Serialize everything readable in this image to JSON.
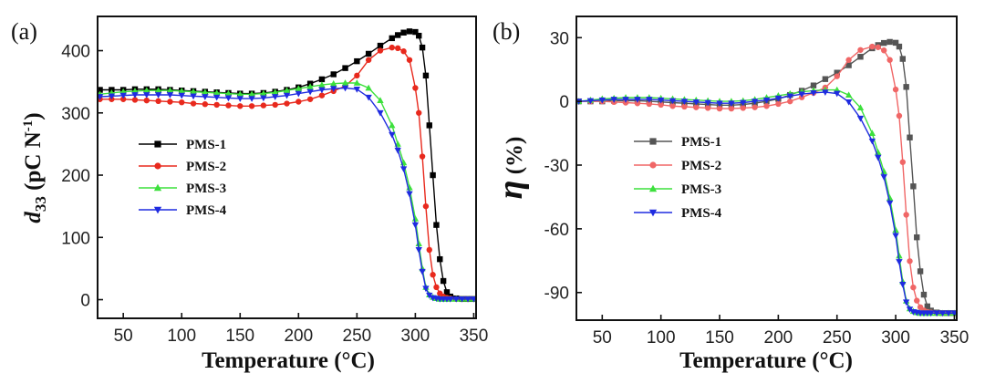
{
  "chart_data": [
    {
      "type": "line",
      "panel_label": "(a)",
      "xlabel": "Temperature (°C)",
      "ylabel": "d33 (pC N⁻¹)",
      "ylabel_symbol": "d",
      "ylabel_subscript": "33",
      "ylabel_unit": " (pC N",
      "ylabel_sup": "-1",
      "ylabel_close": ")",
      "xlim": [
        28,
        352
      ],
      "ylim": [
        -30,
        455
      ],
      "xticks": [
        "50",
        "100",
        "150",
        "200",
        "250",
        "300",
        "350"
      ],
      "yticks": [
        "0",
        "100",
        "200",
        "300",
        "400"
      ],
      "legend_position": "middle-left",
      "x": [
        30,
        40,
        50,
        60,
        70,
        80,
        90,
        100,
        110,
        120,
        130,
        140,
        150,
        160,
        170,
        180,
        190,
        200,
        210,
        220,
        230,
        240,
        250,
        260,
        270,
        280,
        285,
        290,
        295,
        300,
        303,
        306,
        309,
        312,
        315,
        318,
        321,
        324,
        327,
        330,
        335,
        340,
        345,
        350
      ],
      "series": [
        {
          "name": "PMS-1",
          "color": "#000000",
          "marker": "square",
          "values": [
            337,
            337,
            337,
            338,
            338,
            338,
            337,
            336,
            335,
            334,
            333,
            332,
            331,
            331,
            332,
            334,
            337,
            341,
            347,
            354,
            362,
            372,
            383,
            395,
            408,
            420,
            425,
            429,
            431,
            430,
            424,
            405,
            360,
            280,
            200,
            120,
            65,
            30,
            12,
            5,
            2,
            1,
            1,
            1
          ]
        },
        {
          "name": "PMS-2",
          "color": "#e8291d",
          "marker": "circle",
          "values": [
            322,
            322,
            322,
            321,
            320,
            319,
            318,
            317,
            315,
            314,
            313,
            312,
            311,
            311,
            312,
            313,
            315,
            318,
            322,
            328,
            335,
            343,
            360,
            385,
            400,
            405,
            404,
            399,
            385,
            340,
            300,
            230,
            150,
            80,
            40,
            20,
            10,
            5,
            3,
            2,
            1,
            1,
            1,
            1
          ]
        },
        {
          "name": "PMS-3",
          "color": "#3de03d",
          "marker": "triangle-up",
          "values": [
            330,
            332,
            334,
            335,
            336,
            336,
            336,
            335,
            334,
            333,
            332,
            331,
            330,
            330,
            331,
            333,
            336,
            339,
            342,
            345,
            347,
            348,
            348,
            340,
            320,
            280,
            250,
            220,
            180,
            130,
            90,
            50,
            20,
            8,
            4,
            2,
            1,
            1,
            1,
            1,
            1,
            1,
            1,
            1
          ]
        },
        {
          "name": "PMS-4",
          "color": "#1f2be0",
          "marker": "triangle-down",
          "values": [
            326,
            327,
            328,
            329,
            329,
            329,
            329,
            328,
            327,
            326,
            325,
            324,
            323,
            323,
            324,
            326,
            328,
            331,
            334,
            337,
            339,
            340,
            338,
            325,
            300,
            265,
            240,
            210,
            170,
            120,
            80,
            45,
            18,
            7,
            3,
            2,
            1,
            1,
            1,
            1,
            1,
            1,
            1,
            1
          ]
        }
      ]
    },
    {
      "type": "line",
      "panel_label": "(b)",
      "xlabel": "Temperature (°C)",
      "ylabel": "η (%)",
      "ylabel_symbol": "η",
      "ylabel_unit": " (%)",
      "xlim": [
        28,
        352
      ],
      "ylim": [
        -103,
        40
      ],
      "xticks": [
        "50",
        "100",
        "150",
        "200",
        "250",
        "300",
        "350"
      ],
      "yticks": [
        "30",
        "0",
        "-30",
        "-60",
        "-90"
      ],
      "legend_position": "middle-left",
      "x": [
        30,
        40,
        50,
        60,
        70,
        80,
        90,
        100,
        110,
        120,
        130,
        140,
        150,
        160,
        170,
        180,
        190,
        200,
        210,
        220,
        230,
        240,
        250,
        260,
        270,
        280,
        285,
        290,
        295,
        300,
        303,
        306,
        309,
        312,
        315,
        318,
        321,
        324,
        327,
        330,
        335,
        340,
        345,
        350
      ],
      "series": [
        {
          "name": "PMS-1",
          "color": "#555555",
          "marker": "square",
          "values": [
            0,
            0,
            0,
            0.3,
            0.3,
            0.3,
            0,
            -0.3,
            -0.6,
            -0.9,
            -1.2,
            -1.5,
            -1.8,
            -1.8,
            -1.5,
            -0.9,
            0,
            1.2,
            3,
            5,
            7.5,
            10.5,
            13.5,
            17,
            21,
            25,
            26.5,
            27.5,
            28,
            27.6,
            25.8,
            20,
            6.8,
            -17,
            -40,
            -64,
            -80,
            -91,
            -96.5,
            -98.5,
            -99.4,
            -99.7,
            -99.7,
            -99.7
          ]
        },
        {
          "name": "PMS-2",
          "color": "#f06666",
          "marker": "circle",
          "values": [
            0,
            0,
            0,
            -0.3,
            -0.6,
            -0.9,
            -1.2,
            -1.6,
            -2.2,
            -2.5,
            -2.8,
            -3.1,
            -3.4,
            -3.4,
            -3.1,
            -2.8,
            -2.2,
            -1.2,
            0,
            1.9,
            4,
            6.5,
            11.8,
            19.5,
            24.2,
            25.8,
            25.5,
            24,
            19.5,
            5.6,
            -6.8,
            -28.6,
            -53.4,
            -75.2,
            -87.6,
            -93.8,
            -96.9,
            -98.4,
            -99.1,
            -99.4,
            -99.7,
            -99.7,
            -99.7,
            -99.7
          ]
        },
        {
          "name": "PMS-3",
          "color": "#3de03d",
          "marker": "triangle-up",
          "values": [
            0,
            0.6,
            1.2,
            1.5,
            1.8,
            1.8,
            1.8,
            1.5,
            1.2,
            0.9,
            0.6,
            0.3,
            0,
            0,
            0.3,
            0.9,
            1.8,
            2.7,
            3.6,
            4.5,
            5.1,
            5.4,
            5.4,
            3,
            -3,
            -15,
            -24,
            -33,
            -45.5,
            -60.6,
            -72.7,
            -84.8,
            -93.9,
            -97.6,
            -98.8,
            -99.4,
            -99.7,
            -99.7,
            -99.7,
            -99.7,
            -99.7,
            -99.7,
            -99.7,
            -99.7
          ]
        },
        {
          "name": "PMS-4",
          "color": "#1f2be0",
          "marker": "triangle-down",
          "values": [
            0,
            0.3,
            0.6,
            0.9,
            0.9,
            0.9,
            0.9,
            0.6,
            0.3,
            0,
            -0.3,
            -0.6,
            -0.9,
            -0.9,
            -0.6,
            0,
            0.6,
            1.5,
            2.5,
            3.4,
            4,
            4.3,
            3.7,
            -0.3,
            -8,
            -18.7,
            -26.4,
            -35.6,
            -47.9,
            -63.2,
            -75.5,
            -86.2,
            -94.5,
            -97.9,
            -99.1,
            -99.4,
            -99.7,
            -99.7,
            -99.7,
            -99.7,
            -99.7,
            -99.7,
            -99.7,
            -99.7
          ]
        }
      ]
    }
  ]
}
